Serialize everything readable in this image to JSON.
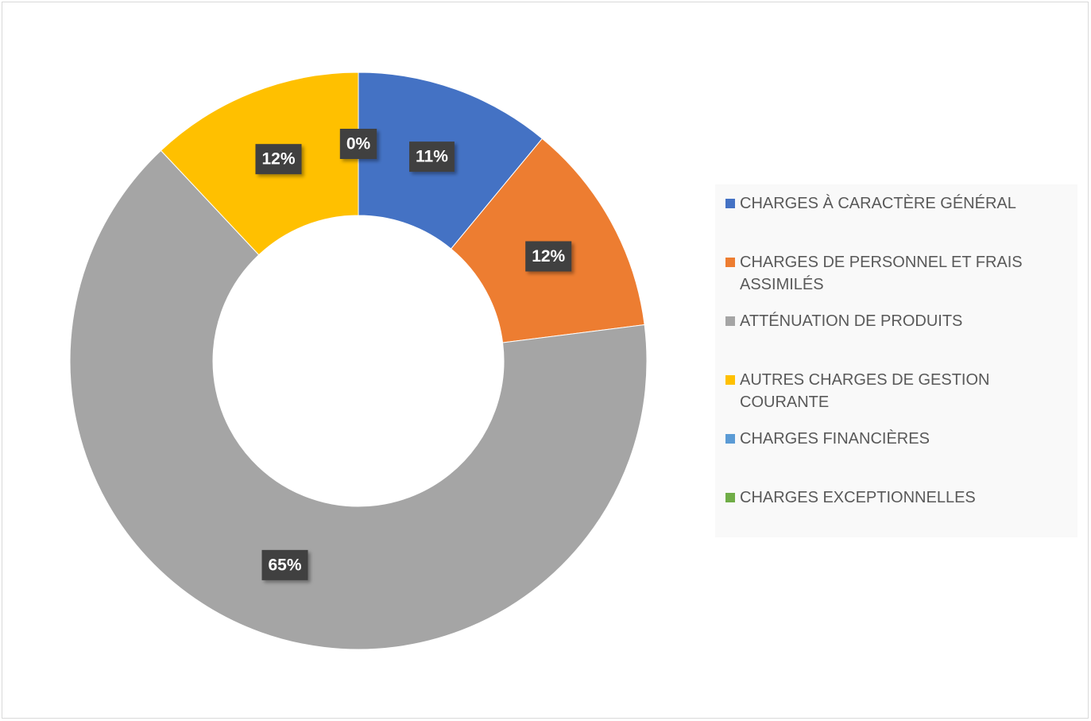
{
  "chart_data": {
    "type": "donut",
    "categories": [
      "CHARGES À CARACTÈRE GÉNÉRAL",
      "CHARGES DE PERSONNEL ET FRAIS ASSIMILÉS",
      "ATTÉNUATION DE PRODUITS",
      "AUTRES CHARGES DE GESTION COURANTE",
      "CHARGES FINANCIÈRES",
      "CHARGES EXCEPTIONNELLES"
    ],
    "values": [
      11,
      12,
      65,
      12,
      0,
      0
    ],
    "value_labels": [
      "11%",
      "12%",
      "65%",
      "12%",
      "0%",
      null
    ],
    "colors": [
      "#4472c4",
      "#ed7d31",
      "#a5a5a5",
      "#ffc000",
      "#5b9bd5",
      "#70ad47"
    ],
    "legend": "right"
  }
}
